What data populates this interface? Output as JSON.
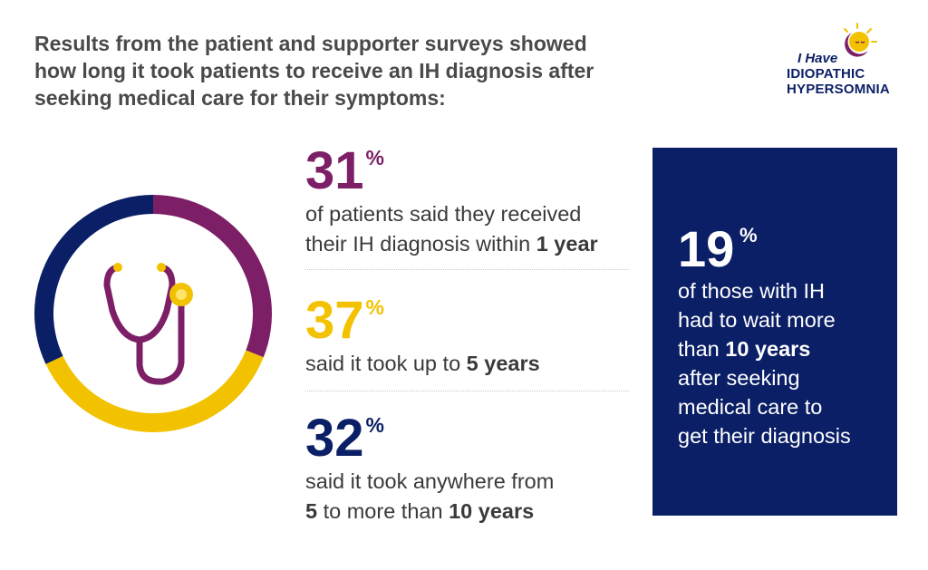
{
  "header": {
    "line1": "Results from the patient and supporter surveys showed",
    "line2": "how long it took patients to receive an IH diagnosis after",
    "line3": "seeking medical care for their symptoms:"
  },
  "logo": {
    "line1": "I Have",
    "line2": "IDIOPATHIC",
    "line3": "HYPERSOMNIA"
  },
  "colors": {
    "purple": "#7d1f66",
    "yellow": "#f2c200",
    "navy": "#0b1f66"
  },
  "chart_data": {
    "type": "pie",
    "categories": [
      "within 1 year",
      "up to 5 years",
      "5 to more than 10 years"
    ],
    "values": [
      31,
      37,
      32
    ],
    "colors": [
      "#7d1f66",
      "#f2c200",
      "#0b1f66"
    ],
    "center_icon": "stethoscope-icon"
  },
  "stats": [
    {
      "value": "31",
      "unit": "%",
      "text_pre": "of patients said they received",
      "text_mid": "their IH diagnosis within ",
      "text_bold": "1 year"
    },
    {
      "value": "37",
      "unit": "%",
      "text_pre": "said it took up to ",
      "text_bold": "5 years"
    },
    {
      "value": "32",
      "unit": "%",
      "text_pre": "said it took anywhere from",
      "text_bold_a": "5",
      "text_mid": " to more than ",
      "text_bold_b": "10 years"
    }
  ],
  "callout": {
    "value": "19",
    "unit": "%",
    "line1": "of those with IH",
    "line2": "had to wait more",
    "line3_pre": "than ",
    "line3_bold": "10 years",
    "line4": "after seeking",
    "line5": "medical care to",
    "line6": "get their diagnosis"
  }
}
